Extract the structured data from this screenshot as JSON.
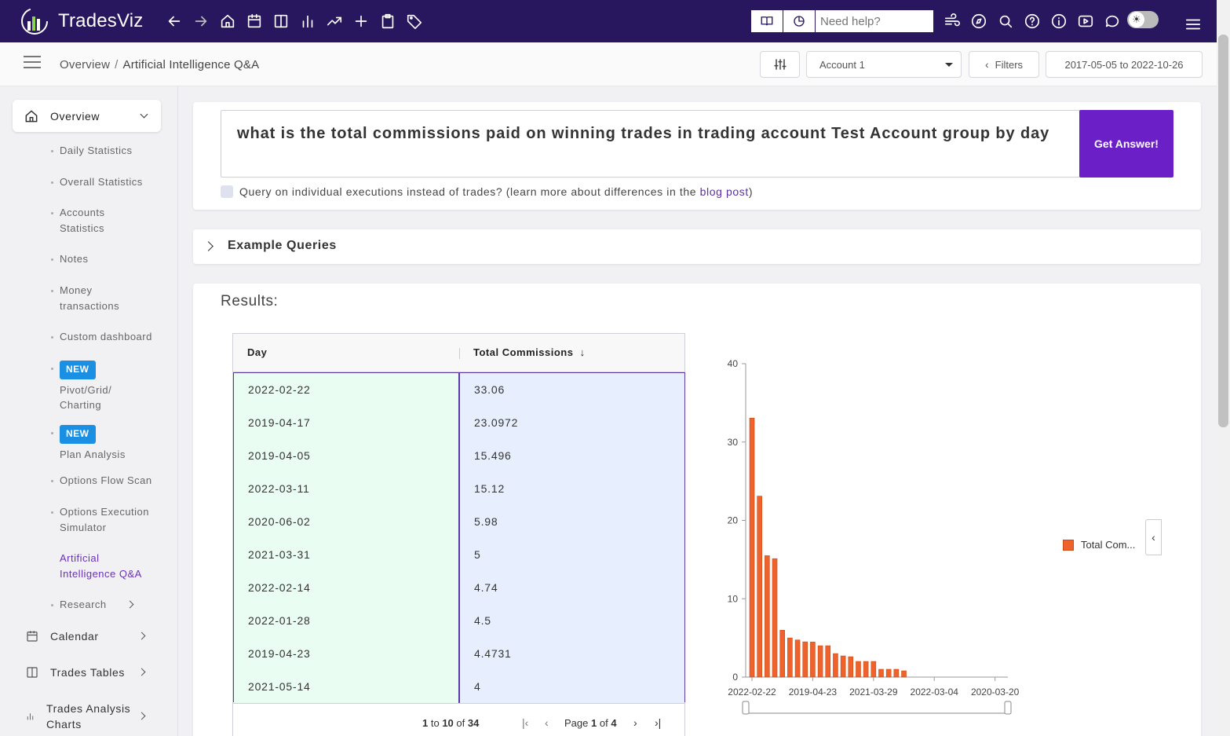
{
  "app": {
    "name": "TradesViz"
  },
  "topbar": {
    "help_placeholder": "Need help?",
    "nav_icons": [
      "arrow-left-icon",
      "arrow-right-icon",
      "home-icon",
      "calendar-icon",
      "columns-icon",
      "bar-chart-icon",
      "trend-icon",
      "plus-icon",
      "clipboard-icon",
      "tag-icon"
    ],
    "right_icons": [
      "wind-icon",
      "compass-icon",
      "search-icon",
      "question-icon",
      "info-icon",
      "video-icon",
      "chat-icon"
    ]
  },
  "breadcrumb": {
    "root": "Overview",
    "separator": "/",
    "current": "Artificial Intelligence Q&A"
  },
  "controls": {
    "account": "Account 1",
    "filters_label": "Filters",
    "date_range": "2017-05-05 to 2022-10-26"
  },
  "sidebar": {
    "overview_label": "Overview",
    "sub_items": [
      {
        "label": "Daily Statistics"
      },
      {
        "label": "Overall Statistics"
      },
      {
        "label": "Accounts Statistics"
      },
      {
        "label": "Notes"
      },
      {
        "label": "Money transactions"
      },
      {
        "label": "Custom dashboard"
      },
      {
        "badge": "NEW",
        "label": "Pivot/Grid/ Charting"
      },
      {
        "badge": "NEW",
        "label": "Plan Analysis"
      },
      {
        "label": "Options Flow Scan"
      },
      {
        "label": "Options Execution Simulator"
      },
      {
        "label": "Artificial Intelligence Q&A",
        "active": true
      },
      {
        "label": "Research"
      }
    ],
    "main_items": [
      {
        "label": "Calendar",
        "icon": "calendar-icon"
      },
      {
        "label": "Trades Tables",
        "icon": "columns-icon"
      },
      {
        "label": "Trades Analysis Charts",
        "icon": "bar-chart-icon"
      }
    ]
  },
  "query": {
    "text": "what is the total commissions paid on winning trades in trading account Test Account group by day",
    "submit_label": "Get Answer!",
    "checkbox_text": "Query on individual executions instead of trades? (learn more about differences in the",
    "checkbox_link": "blog post",
    "checkbox_tail": ")"
  },
  "examples": {
    "label": "Example Queries"
  },
  "results": {
    "title": "Results:",
    "table": {
      "columns": [
        "Day",
        "Total Commissions"
      ],
      "rows": [
        [
          "2022-02-22",
          "33.06"
        ],
        [
          "2019-04-17",
          "23.0972"
        ],
        [
          "2019-04-05",
          "15.496"
        ],
        [
          "2022-03-11",
          "15.12"
        ],
        [
          "2020-06-02",
          "5.98"
        ],
        [
          "2021-03-31",
          "5"
        ],
        [
          "2022-02-14",
          "4.74"
        ],
        [
          "2022-01-28",
          "4.5"
        ],
        [
          "2019-04-23",
          "4.4731"
        ],
        [
          "2021-05-14",
          "4"
        ]
      ],
      "pager": {
        "from": "1",
        "to_word": "to",
        "to": "10",
        "of_word": "of",
        "total": "34",
        "page_word": "Page",
        "page": "1",
        "page_of": "of",
        "pages": "4"
      }
    }
  },
  "colors": {
    "bar": "#f0622b",
    "accent": "#6a1fc7",
    "topbar": "#28175e"
  },
  "chart_data": {
    "type": "bar",
    "series": [
      {
        "name": "Total Com...",
        "values": [
          33.06,
          23.0972,
          15.496,
          15.12,
          5.98,
          5,
          4.74,
          4.5,
          4.4731,
          4,
          4,
          3,
          2.7,
          2.6,
          2,
          2,
          2,
          1,
          1,
          1,
          0.8,
          0,
          0,
          0,
          0,
          0,
          0,
          0,
          0,
          0,
          0,
          0,
          0,
          0
        ]
      }
    ],
    "x_tick_labels": [
      "2022-02-22",
      "2019-04-23",
      "2021-03-29",
      "2022-03-04",
      "2020-03-20"
    ],
    "y_ticks": [
      0,
      10,
      20,
      30,
      40
    ],
    "ylim": [
      0,
      40
    ],
    "legend": "right"
  }
}
